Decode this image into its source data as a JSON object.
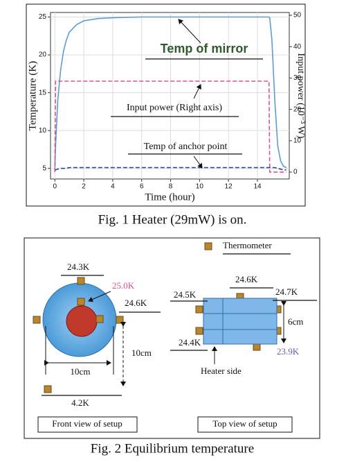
{
  "chart_data": {
    "type": "line",
    "x_label": "Time (hour)",
    "y_label": "Temperature (K)",
    "y2_label": "Input power (10⁻³ W)",
    "x": [
      0,
      0.05,
      0.2,
      0.4,
      0.6,
      0.8,
      1,
      1.5,
      2,
      3,
      4,
      6,
      8,
      10,
      12,
      14,
      14.8,
      14.85,
      15,
      15.2,
      15.4,
      15.6,
      15.8,
      16
    ],
    "series": [
      {
        "name": "Temp of mirror",
        "color": "#5b9bd5",
        "dashed": false,
        "axis": "y",
        "values": [
          5,
          8,
          14,
          18,
          20.5,
          22,
          23,
          24,
          24.5,
          24.8,
          24.9,
          25,
          25,
          25,
          25,
          25,
          25,
          24.9,
          22,
          14,
          8,
          6,
          5.3,
          5.1
        ]
      },
      {
        "name": "Input power (Right axis)",
        "color": "#e0508a",
        "dashed": true,
        "axis": "y2",
        "values": [
          0,
          29,
          29,
          29,
          29,
          29,
          29,
          29,
          29,
          29,
          29,
          29,
          29,
          29,
          29,
          29,
          29,
          0,
          0,
          0,
          0,
          0,
          0,
          0
        ]
      },
      {
        "name": "Temp of anchor point",
        "color": "#2c4a9a",
        "dashed": true,
        "axis": "y",
        "values": [
          4.8,
          4.8,
          4.9,
          5,
          5,
          5,
          5.1,
          5.1,
          5.1,
          5.1,
          5.1,
          5.1,
          5.1,
          5.1,
          5.1,
          5.1,
          5.1,
          5.1,
          5.1,
          5.1,
          5,
          4.9,
          4.8,
          4.8
        ]
      }
    ],
    "xlim": [
      -0.3,
      16.2
    ],
    "xticks": [
      0,
      2,
      4,
      6,
      8,
      10,
      12,
      14
    ],
    "ylim": [
      3.6,
      25.6
    ],
    "yticks": [
      5,
      10,
      15,
      20,
      25
    ],
    "y2lim": [
      -2.2,
      50.9
    ],
    "y2ticks": [
      0,
      10,
      20,
      30,
      40,
      50
    ],
    "grid": true
  },
  "figure_1_caption": "Fig. 1 Heater (29mW) is on.",
  "figure_2": {
    "legend": "Thermometer",
    "front_view": {
      "top": "24.3K",
      "center": "25.0K",
      "right": "24.6K",
      "width": "10cm",
      "height": "10cm",
      "bottom": "4.2K",
      "title": "Front view of setup"
    },
    "top_view": {
      "top": "24.6K",
      "left_top": "24.5K",
      "right_top": "24.7K",
      "width": "6cm",
      "left_bottom": "24.4K",
      "right_bottom": "23.9K",
      "heater": "Heater side",
      "title": "Top view of setup"
    },
    "caption": "Fig. 2 Equilibrium temperature"
  }
}
